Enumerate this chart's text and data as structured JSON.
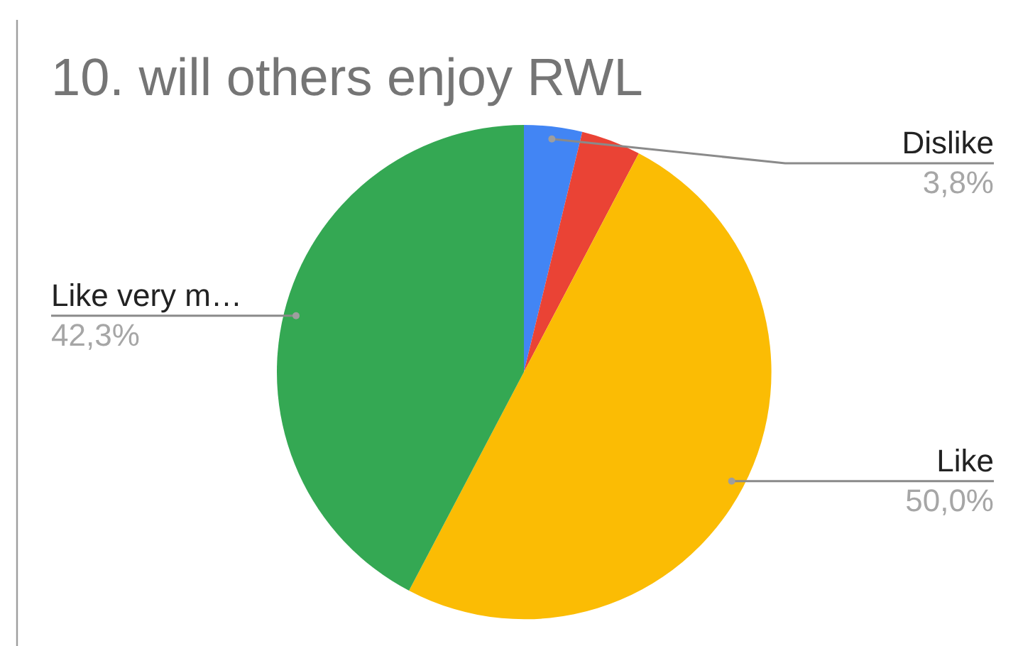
{
  "chart_data": {
    "type": "pie",
    "title": "10. will others enjoy RWL",
    "categories": [
      "Dislike",
      null,
      "Like",
      "Like very m…"
    ],
    "values": [
      3.8,
      3.9,
      50.0,
      42.3
    ],
    "colors": [
      "#4285f4",
      "#ea4335",
      "#fbbc04",
      "#34a853"
    ],
    "value_labels": [
      "3,8%",
      null,
      "50,0%",
      "42,3%"
    ]
  }
}
